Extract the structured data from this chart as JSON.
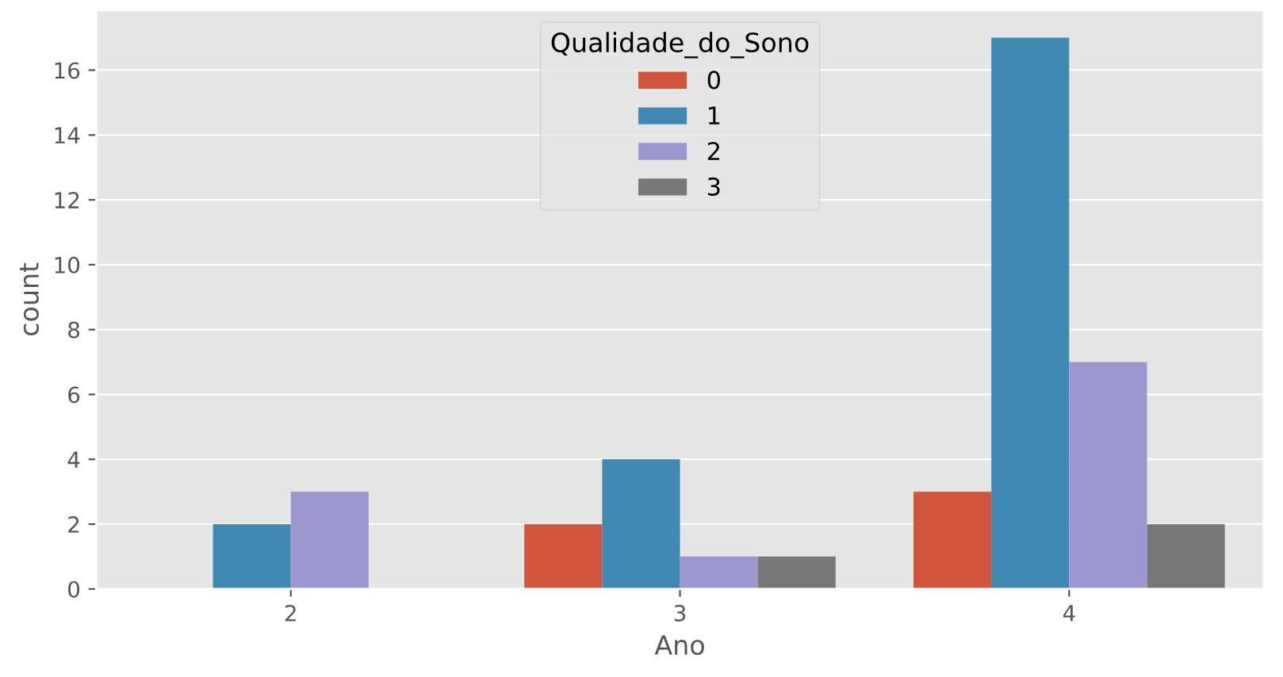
{
  "chart_data": {
    "type": "bar",
    "xlabel": "Ano",
    "ylabel": "count",
    "legend_title": "Qualidade_do_Sono",
    "categories": [
      "2",
      "3",
      "4"
    ],
    "series": [
      {
        "name": "0",
        "color": "#d0553c",
        "values": [
          null,
          2,
          3
        ]
      },
      {
        "name": "1",
        "color": "#3f89b3",
        "values": [
          2,
          4,
          17
        ]
      },
      {
        "name": "2",
        "color": "#9d97cf",
        "values": [
          3,
          1,
          7
        ]
      },
      {
        "name": "3",
        "color": "#777777",
        "values": [
          null,
          1,
          2
        ]
      }
    ],
    "ylim": [
      0,
      17.85
    ],
    "yticks": [
      0,
      2,
      4,
      6,
      8,
      10,
      12,
      14,
      16
    ],
    "grid": "y",
    "legend": "top"
  }
}
